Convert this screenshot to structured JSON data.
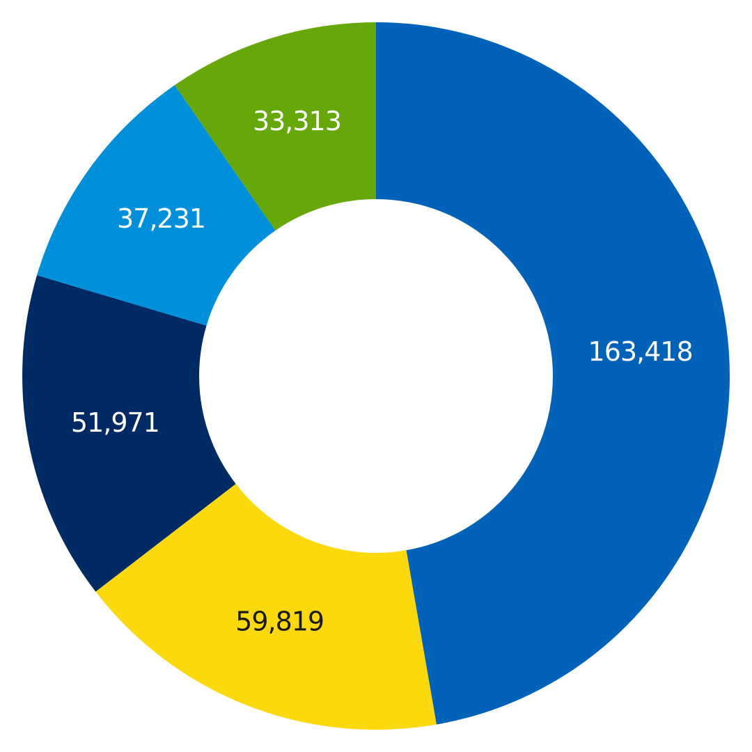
{
  "chart_data": {
    "type": "pie",
    "variant": "donut",
    "title": "",
    "slices": [
      {
        "label": "163,418",
        "value": 163418,
        "color": "#0062B8",
        "text_color": "#FFFFFF"
      },
      {
        "label": "59,819",
        "value": 59819,
        "color": "#FBD90C",
        "text_color": "#1A1A1A"
      },
      {
        "label": "51,971",
        "value": 51971,
        "color": "#002A64",
        "text_color": "#FFFFFF"
      },
      {
        "label": "37,231",
        "value": 37231,
        "color": "#0090DB",
        "text_color": "#FFFFFF"
      },
      {
        "label": "33,313",
        "value": 33313,
        "color": "#66A80A",
        "text_color": "#FFFFFF"
      }
    ],
    "start_angle": "12 o'clock",
    "direction": "clockwise",
    "legend": "none"
  }
}
